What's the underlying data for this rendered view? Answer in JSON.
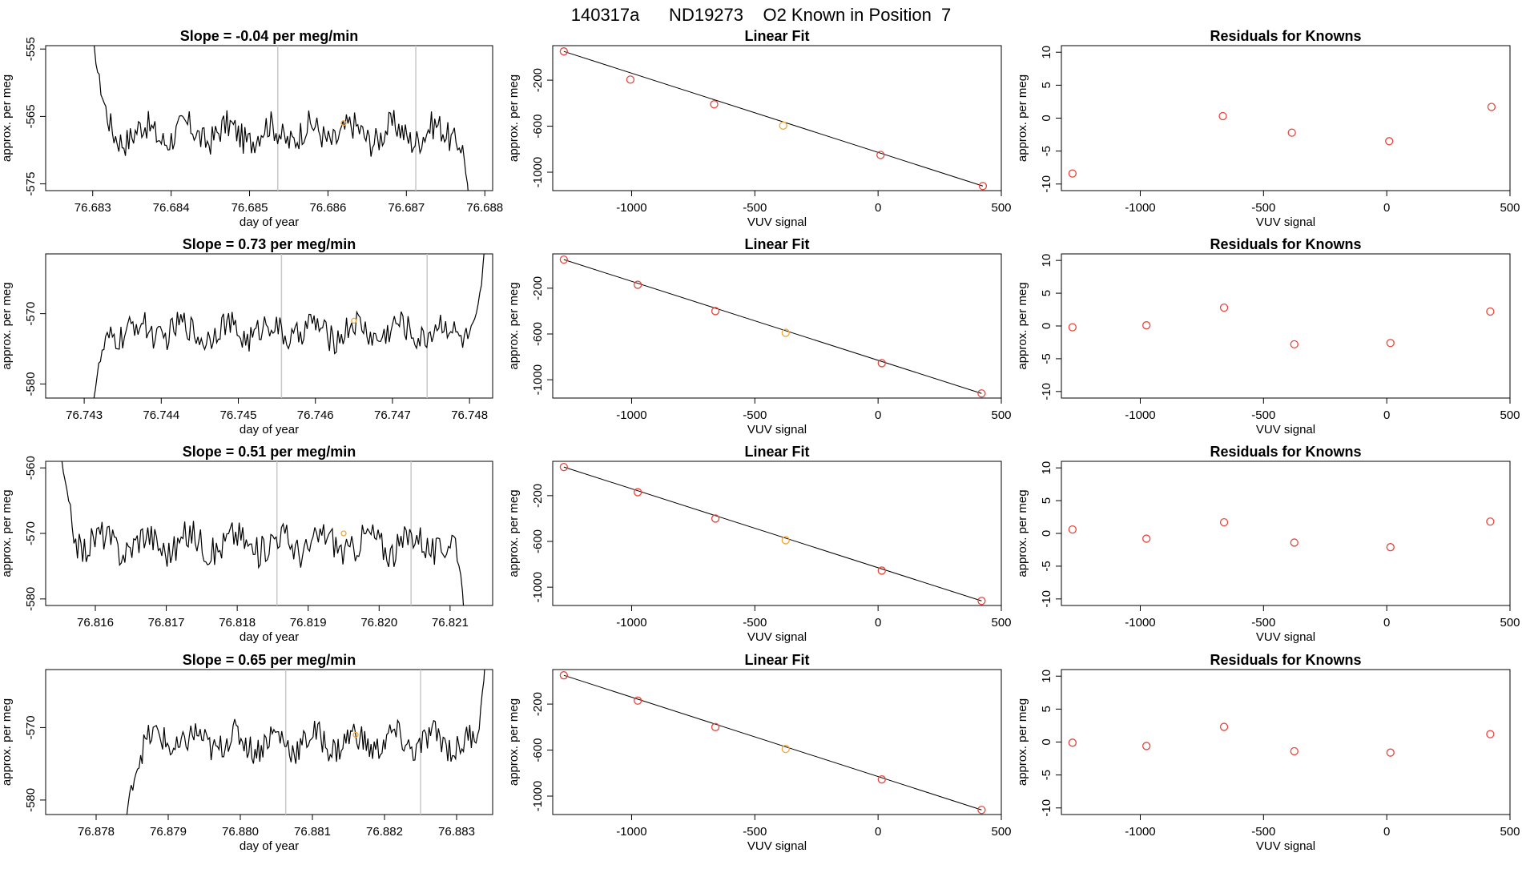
{
  "page_title": "140317a      ND19273    O2 Known in Position  7",
  "colors": {
    "trace": "#000000",
    "known": "#e8453c",
    "highlight": "#f2a73a",
    "vline": "#c8c8c8",
    "axis": "#000000"
  },
  "labels": {
    "time_xlabel": "day of year",
    "time_ylabel": "approx. per meg",
    "fit_title": "Linear Fit",
    "fit_xlabel": "VUV signal",
    "fit_ylabel": "approx. per meg",
    "resid_title": "Residuals for Knowns",
    "resid_xlabel": "VUV signal",
    "resid_ylabel": "approx. per meg"
  },
  "chart_data": [
    {
      "type": "line",
      "row": 0,
      "title": "Slope =  -0.04  per meg/min",
      "xlabel": "day of year",
      "ylabel": "approx. per meg",
      "xlim": [
        76.6824,
        76.6881
      ],
      "ylim": [
        -576.0,
        -554.5
      ],
      "x_ticks": [
        "76.683",
        "76.684",
        "76.685",
        "76.686",
        "76.687",
        "76.688"
      ],
      "y_ticks": [
        "-555",
        "-565",
        "-575"
      ],
      "x_start": 76.683,
      "x_end": 76.6878,
      "trace_start_value": -553,
      "trace_end_value": -578,
      "level": -567.5,
      "noise": 2.2,
      "vlines": [
        76.68536,
        76.68712
      ],
      "highlight_point": [
        76.6862,
        -566
      ]
    },
    {
      "type": "line",
      "row": 1,
      "title": "Slope =  0.73  per meg/min",
      "xlabel": "day of year",
      "ylabel": "approx. per meg",
      "xlim": [
        76.7425,
        76.7483
      ],
      "ylim": [
        -582.0,
        -561.5
      ],
      "x_ticks": [
        "76.743",
        "76.744",
        "76.745",
        "76.746",
        "76.747",
        "76.748"
      ],
      "y_ticks": [
        "-570",
        "-580"
      ],
      "x_start": 76.7431,
      "x_end": 76.7482,
      "trace_start_value": -584,
      "trace_end_value": -560,
      "level": -572.5,
      "noise": 2.0,
      "vlines": [
        76.74556,
        76.74745
      ],
      "highlight_point": [
        76.7465,
        -571
      ]
    },
    {
      "type": "line",
      "row": 2,
      "title": "Slope =  0.51  per meg/min",
      "xlabel": "day of year",
      "ylabel": "approx. per meg",
      "xlim": [
        76.8153,
        76.8216
      ],
      "ylim": [
        -581.0,
        -559.0
      ],
      "x_ticks": [
        "76.816",
        "76.817",
        "76.818",
        "76.819",
        "76.820",
        "76.821"
      ],
      "y_ticks": [
        "-560",
        "-570",
        "-580"
      ],
      "x_start": 76.8155,
      "x_end": 76.8212,
      "trace_start_value": -557,
      "trace_end_value": -583,
      "level": -571.5,
      "noise": 2.4,
      "vlines": [
        76.81856,
        76.82045
      ],
      "highlight_point": [
        76.8195,
        -570
      ]
    },
    {
      "type": "line",
      "row": 3,
      "title": "Slope =  0.65  per meg/min",
      "xlabel": "day of year",
      "ylabel": "approx. per meg",
      "xlim": [
        76.8773,
        76.8835
      ],
      "ylim": [
        -582.0,
        -562.0
      ],
      "x_ticks": [
        "76.878",
        "76.879",
        "76.880",
        "76.881",
        "76.882",
        "76.883"
      ],
      "y_ticks": [
        "-570",
        "-580"
      ],
      "x_start": 76.8784,
      "x_end": 76.8834,
      "trace_start_value": -584,
      "trace_end_value": -560,
      "level": -572,
      "noise": 2.0,
      "vlines": [
        76.88063,
        76.8825
      ],
      "highlight_point": [
        76.8816,
        -571
      ]
    },
    {
      "type": "scatter",
      "row": 0,
      "title": "Linear Fit",
      "xlabel": "VUV signal",
      "ylabel": "approx. per meg",
      "xlim": [
        -1320,
        500
      ],
      "ylim": [
        -1160,
        100
      ],
      "x_ticks": [
        "-1000",
        "-500",
        "0",
        "500"
      ],
      "y_ticks": [
        "-200",
        "-600",
        "-1000"
      ],
      "x": [
        -1275,
        -1005,
        -665,
        -385,
        10,
        425
      ],
      "y": [
        50,
        -195,
        -410,
        -595,
        -850,
        -1120
      ],
      "fit_line": [
        [
          -1275,
          50
        ],
        [
          425,
          -1120
        ]
      ],
      "highlight_index": 3
    },
    {
      "type": "scatter",
      "row": 1,
      "title": "Linear Fit",
      "xlabel": "VUV signal",
      "ylabel": "approx. per meg",
      "xlim": [
        -1320,
        500
      ],
      "ylim": [
        -1160,
        100
      ],
      "x_ticks": [
        "-1000",
        "-500",
        "0",
        "500"
      ],
      "y_ticks": [
        "-200",
        "-600",
        "-1000"
      ],
      "x": [
        -1275,
        -975,
        -660,
        -375,
        15,
        420
      ],
      "y": [
        50,
        -170,
        -400,
        -590,
        -855,
        -1120
      ],
      "fit_line": [
        [
          -1275,
          50
        ],
        [
          420,
          -1120
        ]
      ],
      "highlight_index": 3
    },
    {
      "type": "scatter",
      "row": 2,
      "title": "Linear Fit",
      "xlabel": "VUV signal",
      "ylabel": "approx. per meg",
      "xlim": [
        -1320,
        500
      ],
      "ylim": [
        -1160,
        100
      ],
      "x_ticks": [
        "-1000",
        "-500",
        "0",
        "500"
      ],
      "y_ticks": [
        "-200",
        "-600",
        "-1000"
      ],
      "x": [
        -1275,
        -975,
        -660,
        -375,
        15,
        420
      ],
      "y": [
        50,
        -170,
        -400,
        -590,
        -855,
        -1120
      ],
      "fit_line": [
        [
          -1275,
          50
        ],
        [
          420,
          -1120
        ]
      ],
      "highlight_index": 3
    },
    {
      "type": "scatter",
      "row": 3,
      "title": "Linear Fit",
      "xlabel": "VUV signal",
      "ylabel": "approx. per meg",
      "xlim": [
        -1320,
        500
      ],
      "ylim": [
        -1160,
        100
      ],
      "x_ticks": [
        "-1000",
        "-500",
        "0",
        "500"
      ],
      "y_ticks": [
        "-200",
        "-600",
        "-1000"
      ],
      "x": [
        -1275,
        -975,
        -660,
        -375,
        15,
        420
      ],
      "y": [
        50,
        -170,
        -400,
        -590,
        -855,
        -1120
      ],
      "fit_line": [
        [
          -1275,
          50
        ],
        [
          420,
          -1120
        ]
      ],
      "highlight_index": 3
    },
    {
      "type": "scatter",
      "row": 0,
      "title": "Residuals for Knowns",
      "xlabel": "VUV signal",
      "ylabel": "approx. per meg",
      "xlim": [
        -1320,
        500
      ],
      "ylim": [
        -11,
        11
      ],
      "x_ticks": [
        "-1000",
        "-500",
        "0",
        "500"
      ],
      "y_ticks": [
        "10",
        "5",
        "0",
        "-5",
        "-10"
      ],
      "x": [
        -1275,
        -665,
        -385,
        10,
        425
      ],
      "y": [
        -8.4,
        0.3,
        -2.2,
        -3.5,
        1.7
      ]
    },
    {
      "type": "scatter",
      "row": 1,
      "title": "Residuals for Knowns",
      "xlabel": "VUV signal",
      "ylabel": "approx. per meg",
      "xlim": [
        -1320,
        500
      ],
      "ylim": [
        -11,
        11
      ],
      "x_ticks": [
        "-1000",
        "-500",
        "0",
        "500"
      ],
      "y_ticks": [
        "10",
        "5",
        "0",
        "-5",
        "-10"
      ],
      "x": [
        -1275,
        -975,
        -660,
        -375,
        15,
        420
      ],
      "y": [
        -0.2,
        0.1,
        2.8,
        -2.8,
        -2.6,
        2.2
      ]
    },
    {
      "type": "scatter",
      "row": 2,
      "title": "Residuals for Knowns",
      "xlabel": "VUV signal",
      "ylabel": "approx. per meg",
      "xlim": [
        -1320,
        500
      ],
      "ylim": [
        -11,
        11
      ],
      "x_ticks": [
        "-1000",
        "-500",
        "0",
        "500"
      ],
      "y_ticks": [
        "10",
        "5",
        "0",
        "-5",
        "-10"
      ],
      "x": [
        -1275,
        -975,
        -660,
        -375,
        15,
        420
      ],
      "y": [
        0.6,
        -0.8,
        1.7,
        -1.4,
        -2.1,
        1.8
      ]
    },
    {
      "type": "scatter",
      "row": 3,
      "title": "Residuals for Knowns",
      "xlabel": "VUV signal",
      "ylabel": "approx. per meg",
      "xlim": [
        -1320,
        500
      ],
      "ylim": [
        -11,
        11
      ],
      "x_ticks": [
        "-1000",
        "-500",
        "0",
        "500"
      ],
      "y_ticks": [
        "10",
        "5",
        "0",
        "-5",
        "-10"
      ],
      "x": [
        -1275,
        -975,
        -660,
        -375,
        15,
        420
      ],
      "y": [
        -0.1,
        -0.6,
        2.3,
        -1.4,
        -1.6,
        1.2
      ]
    }
  ]
}
